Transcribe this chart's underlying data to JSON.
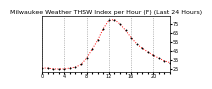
{
  "title": "Milwaukee Weather THSW Index per Hour (F) (Last 24 Hours)",
  "hours": [
    0,
    1,
    2,
    3,
    4,
    5,
    6,
    7,
    8,
    9,
    10,
    11,
    12,
    13,
    14,
    15,
    16,
    17,
    18,
    19,
    20,
    21,
    22,
    23
  ],
  "values": [
    26,
    26,
    25,
    25,
    25,
    26,
    27,
    30,
    37,
    47,
    57,
    70,
    79,
    80,
    75,
    68,
    60,
    53,
    48,
    44,
    40,
    37,
    34,
    32
  ],
  "line_color": "#ff0000",
  "marker_color": "#000000",
  "bg_color": "#ffffff",
  "plot_bg": "#ffffff",
  "grid_color": "#888888",
  "ylim": [
    22,
    84
  ],
  "yticks": [
    25,
    35,
    45,
    55,
    65,
    75
  ],
  "xlim": [
    0,
    23
  ],
  "title_fontsize": 4.5,
  "tick_fontsize": 3.5,
  "dpi": 100
}
